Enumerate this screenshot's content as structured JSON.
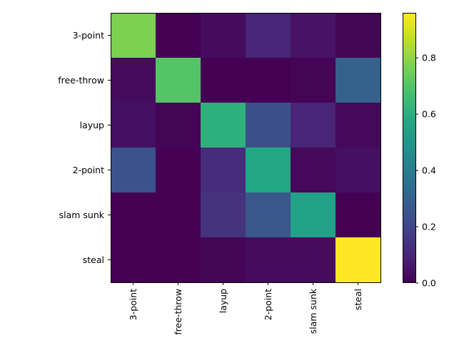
{
  "chart_data": {
    "type": "heatmap",
    "title": "",
    "xlabel": "",
    "ylabel": "",
    "rows": [
      "3-point",
      "free-throw",
      "layup",
      "2-point",
      "slam sunk",
      "steal"
    ],
    "columns": [
      "3-point",
      "free-throw",
      "layup",
      "2-point",
      "slam sunk",
      "steal"
    ],
    "values": [
      [
        0.77,
        0.0,
        0.03,
        0.1,
        0.05,
        0.01
      ],
      [
        0.03,
        0.7,
        0.0,
        0.0,
        0.01,
        0.3
      ],
      [
        0.04,
        0.01,
        0.61,
        0.23,
        0.1,
        0.02
      ],
      [
        0.24,
        0.0,
        0.12,
        0.57,
        0.02,
        0.04
      ],
      [
        0.0,
        0.0,
        0.14,
        0.26,
        0.55,
        0.0
      ],
      [
        0.0,
        0.0,
        0.01,
        0.03,
        0.03,
        0.96
      ]
    ],
    "colormap": "viridis",
    "vmin": 0.0,
    "vmax": 0.96,
    "colorbar": {
      "ticks": [
        0.0,
        0.2,
        0.4,
        0.6,
        0.8
      ],
      "tick_labels": [
        "0.0",
        "0.2",
        "0.4",
        "0.6",
        "0.8"
      ]
    }
  }
}
